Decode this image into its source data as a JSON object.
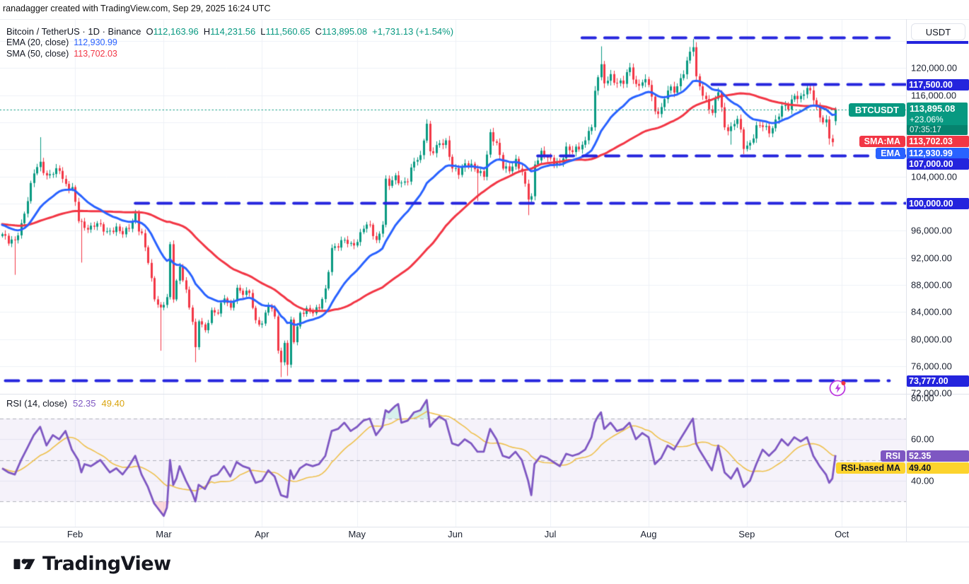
{
  "attribution": "ranadagger created with TradingView.com, Sep 29, 2025 16:24 UTC",
  "legend": {
    "symbol_title": "Bitcoin / TetherUS · 1D · Binance",
    "ohlc": [
      {
        "k": "O",
        "v": "112,163.96"
      },
      {
        "k": "H",
        "v": "114,231.56"
      },
      {
        "k": "L",
        "v": "111,560.65"
      },
      {
        "k": "C",
        "v": "113,895.08"
      }
    ],
    "change": "+1,731.13 (+1.54%)",
    "ema_label": "EMA (20, close)",
    "ema_value": "112,930.99",
    "sma_label": "SMA (50, close)",
    "sma_value": "113,702.03"
  },
  "rsi_legend": {
    "label": "RSI (14, close)",
    "rsi_value": "52.35",
    "ma_value": "49.40"
  },
  "price_scale": {
    "currency_button": "USDT",
    "ticks": [
      {
        "price": 120000,
        "text": "120,000.00"
      },
      {
        "price": 116000,
        "text": "116,000.00"
      },
      {
        "price": 104000,
        "text": "104,000.00"
      },
      {
        "price": 96000,
        "text": "96,000.00"
      },
      {
        "price": 92000,
        "text": "92,000.00"
      },
      {
        "price": 88000,
        "text": "88,000.00"
      },
      {
        "price": 84000,
        "text": "84,000.00"
      },
      {
        "price": 80000,
        "text": "80,000.00"
      },
      {
        "price": 76000,
        "text": "76,000.00"
      },
      {
        "price": 72000,
        "text": "72,000.00"
      }
    ],
    "level_117500": "117,500.00",
    "level_107000": "107,000.00",
    "level_100000": "100,000.00",
    "level_73777": "73,777.00",
    "current": {
      "price": "113,895.08",
      "change_pct": "+23.06%",
      "countdown": "07:35:17"
    },
    "sma_badge_value": "113,702.03",
    "ema_badge_value": "112,930.99"
  },
  "pills": {
    "symbol": "BTCUSDT",
    "sma": "SMA:MA",
    "ema": "EMA",
    "rsi": "RSI",
    "rsi_ma": "RSI-based MA"
  },
  "rsi_scale": {
    "ticks": [
      {
        "v": 80,
        "text": "80.00"
      },
      {
        "v": 60,
        "text": "60.00"
      },
      {
        "v": 40,
        "text": "40.00"
      }
    ],
    "rsi_value": "52.35",
    "ma_value": "49.40"
  },
  "time_axis": {
    "months": [
      {
        "label": "Feb",
        "day": 23
      },
      {
        "label": "Mar",
        "day": 51
      },
      {
        "label": "Apr",
        "day": 82
      },
      {
        "label": "May",
        "day": 112
      },
      {
        "label": "Jun",
        "day": 143
      },
      {
        "label": "Jul",
        "day": 173
      },
      {
        "label": "Aug",
        "day": 204
      },
      {
        "label": "Sep",
        "day": 235
      },
      {
        "label": "Oct",
        "day": 265
      }
    ]
  },
  "footer": {
    "brand": "TradingView"
  },
  "colors": {
    "up": "#089981",
    "down": "#f23645",
    "ema": "#2962ff",
    "sma": "#f23645",
    "level_blue": "#2424dd",
    "rsi": "#7e57c2",
    "rsi_ma": "#eec04d",
    "grid": "#eef1f7",
    "band_fill": "rgba(126,87,194,0.08)",
    "overbought_fill": "rgba(34,171,148,0.18)",
    "oversold_fill": "rgba(247,82,95,0.22)",
    "current_dotted": "#089981",
    "rsi_band_line": "#8a8e99"
  },
  "chart_data": {
    "type": "candlestick+rsi",
    "symbol": "BTCUSDT",
    "exchange": "Binance",
    "timeframe": "1D",
    "start_date": "2025-01-09",
    "end_date": "2025-09-29",
    "price_axis": {
      "min": 71800,
      "max": 127100,
      "grid_step": 4000
    },
    "rsi_axis": {
      "min": 18,
      "max": 81,
      "bands": [
        70,
        50,
        30
      ]
    },
    "ohlc_today": {
      "open": 112163.96,
      "high": 114231.56,
      "low": 111560.65,
      "close": 113895.08,
      "change": 1731.13,
      "change_pct": 1.54
    },
    "ema20_current": 112930.99,
    "sma50_current": 113702.03,
    "rsi_current": 52.35,
    "rsi_ma_current": 49.4,
    "levels": [
      {
        "price": 124400,
        "from_day": 183,
        "to_day": 280,
        "label": ""
      },
      {
        "price": 117500,
        "from_day": 224,
        "to_day": 285,
        "label": "117,500.00"
      },
      {
        "price": 107000,
        "from_day": 169,
        "to_day": 285,
        "label": "107,000.00"
      },
      {
        "price": 100000,
        "from_day": 42,
        "to_day": 285,
        "label": "100,000.00"
      },
      {
        "price": 73777,
        "from_day": 1,
        "to_day": 280,
        "label": "73,777.00"
      }
    ],
    "price_anchors": [
      [
        0,
        95500
      ],
      [
        2,
        94300
      ],
      [
        4,
        94600
      ],
      [
        6,
        96900
      ],
      [
        8,
        100400
      ],
      [
        10,
        104700
      ],
      [
        12,
        106100
      ],
      [
        14,
        103900
      ],
      [
        16,
        104500
      ],
      [
        18,
        105100
      ],
      [
        20,
        102700
      ],
      [
        22,
        102200
      ],
      [
        24,
        97700
      ],
      [
        26,
        96600
      ],
      [
        28,
        96400
      ],
      [
        30,
        97000
      ],
      [
        33,
        95900
      ],
      [
        36,
        96200
      ],
      [
        38,
        95600
      ],
      [
        40,
        96700
      ],
      [
        42,
        98300
      ],
      [
        43,
        96100
      ],
      [
        44,
        95300
      ],
      [
        46,
        91600
      ],
      [
        48,
        86100
      ],
      [
        50,
        84300
      ],
      [
        52,
        86100
      ],
      [
        53,
        93900
      ],
      [
        54,
        86300
      ],
      [
        56,
        90700
      ],
      [
        58,
        86900
      ],
      [
        60,
        82700
      ],
      [
        61,
        78700
      ],
      [
        62,
        83000
      ],
      [
        64,
        81100
      ],
      [
        66,
        84000
      ],
      [
        68,
        84100
      ],
      [
        70,
        86200
      ],
      [
        72,
        84300
      ],
      [
        74,
        87500
      ],
      [
        76,
        86900
      ],
      [
        78,
        86800
      ],
      [
        80,
        82500
      ],
      [
        82,
        82400
      ],
      [
        84,
        85200
      ],
      [
        86,
        83200
      ],
      [
        87,
        78500
      ],
      [
        88,
        76400
      ],
      [
        89,
        79700
      ],
      [
        90,
        76400
      ],
      [
        91,
        82600
      ],
      [
        92,
        79700
      ],
      [
        94,
        83700
      ],
      [
        96,
        84500
      ],
      [
        98,
        84000
      ],
      [
        100,
        84600
      ],
      [
        102,
        87300
      ],
      [
        104,
        93400
      ],
      [
        106,
        93700
      ],
      [
        108,
        94700
      ],
      [
        110,
        94000
      ],
      [
        112,
        94300
      ],
      [
        114,
        96500
      ],
      [
        116,
        96900
      ],
      [
        118,
        94400
      ],
      [
        120,
        96900
      ],
      [
        121,
        103200
      ],
      [
        122,
        102900
      ],
      [
        124,
        104100
      ],
      [
        126,
        102800
      ],
      [
        128,
        103400
      ],
      [
        130,
        106500
      ],
      [
        132,
        106900
      ],
      [
        133,
        109600
      ],
      [
        134,
        111500
      ],
      [
        135,
        107400
      ],
      [
        136,
        107800
      ],
      [
        138,
        109100
      ],
      [
        140,
        108900
      ],
      [
        142,
        105100
      ],
      [
        144,
        104700
      ],
      [
        146,
        105900
      ],
      [
        148,
        105400
      ],
      [
        150,
        104700
      ],
      [
        152,
        104400
      ],
      [
        154,
        110200
      ],
      [
        156,
        108600
      ],
      [
        158,
        105600
      ],
      [
        160,
        105000
      ],
      [
        162,
        106100
      ],
      [
        164,
        104600
      ],
      [
        166,
        101100
      ],
      [
        167,
        100900
      ],
      [
        168,
        105700
      ],
      [
        170,
        107300
      ],
      [
        172,
        107000
      ],
      [
        174,
        106200
      ],
      [
        176,
        105700
      ],
      [
        178,
        108100
      ],
      [
        180,
        108000
      ],
      [
        182,
        108200
      ],
      [
        184,
        108900
      ],
      [
        185,
        111100
      ],
      [
        186,
        111200
      ],
      [
        187,
        116700
      ],
      [
        188,
        119100
      ],
      [
        189,
        120100
      ],
      [
        190,
        117700
      ],
      [
        192,
        118700
      ],
      [
        194,
        117900
      ],
      [
        196,
        118000
      ],
      [
        198,
        119900
      ],
      [
        200,
        117400
      ],
      [
        202,
        118100
      ],
      [
        204,
        117700
      ],
      [
        206,
        113400
      ],
      [
        208,
        114100
      ],
      [
        210,
        116900
      ],
      [
        212,
        116500
      ],
      [
        214,
        118300
      ],
      [
        216,
        121000
      ],
      [
        218,
        123300
      ],
      [
        219,
        118300
      ],
      [
        220,
        117400
      ],
      [
        222,
        115200
      ],
      [
        224,
        113300
      ],
      [
        226,
        116700
      ],
      [
        228,
        111300
      ],
      [
        230,
        111100
      ],
      [
        232,
        112500
      ],
      [
        234,
        108400
      ],
      [
        236,
        108900
      ],
      [
        238,
        111200
      ],
      [
        240,
        111500
      ],
      [
        242,
        110700
      ],
      [
        244,
        112100
      ],
      [
        246,
        114100
      ],
      [
        248,
        114300
      ],
      [
        250,
        116100
      ],
      [
        252,
        115400
      ],
      [
        254,
        117000
      ],
      [
        256,
        115800
      ],
      [
        258,
        112600
      ],
      [
        260,
        111900
      ],
      [
        261,
        109600
      ],
      [
        262,
        109300
      ],
      [
        263,
        113895
      ]
    ],
    "wick_overrides": [
      {
        "d": 4,
        "low": 89500
      },
      {
        "d": 12,
        "high": 109800
      },
      {
        "d": 25,
        "low": 91300
      },
      {
        "d": 50,
        "low": 78300
      },
      {
        "d": 61,
        "low": 76600
      },
      {
        "d": 88,
        "low": 74400
      },
      {
        "d": 90,
        "low": 74600
      },
      {
        "d": 134,
        "high": 112000
      },
      {
        "d": 150,
        "low": 100400
      },
      {
        "d": 166,
        "low": 98300
      },
      {
        "d": 189,
        "high": 123200
      },
      {
        "d": 218,
        "high": 124300
      },
      {
        "d": 230,
        "low": 108700
      },
      {
        "d": 234,
        "low": 107300
      },
      {
        "d": 261,
        "low": 108700
      }
    ],
    "rsi_anchors": [
      [
        0,
        46
      ],
      [
        2,
        44
      ],
      [
        4,
        43
      ],
      [
        6,
        50
      ],
      [
        8,
        56
      ],
      [
        10,
        62
      ],
      [
        12,
        66
      ],
      [
        14,
        57
      ],
      [
        16,
        62
      ],
      [
        18,
        60
      ],
      [
        20,
        64
      ],
      [
        22,
        55
      ],
      [
        24,
        50
      ],
      [
        25,
        44
      ],
      [
        26,
        48
      ],
      [
        28,
        47
      ],
      [
        31,
        50
      ],
      [
        34,
        44
      ],
      [
        36,
        46
      ],
      [
        38,
        43
      ],
      [
        40,
        47
      ],
      [
        42,
        52
      ],
      [
        44,
        43
      ],
      [
        46,
        37
      ],
      [
        48,
        29
      ],
      [
        50,
        25
      ],
      [
        51,
        23
      ],
      [
        52,
        27
      ],
      [
        53,
        50
      ],
      [
        54,
        38
      ],
      [
        55,
        41
      ],
      [
        56,
        47
      ],
      [
        58,
        40
      ],
      [
        60,
        34
      ],
      [
        61,
        30
      ],
      [
        62,
        38
      ],
      [
        64,
        36
      ],
      [
        66,
        42
      ],
      [
        68,
        43
      ],
      [
        70,
        47
      ],
      [
        72,
        42
      ],
      [
        74,
        49
      ],
      [
        76,
        47
      ],
      [
        78,
        46
      ],
      [
        80,
        39
      ],
      [
        82,
        40
      ],
      [
        84,
        45
      ],
      [
        86,
        42
      ],
      [
        88,
        33
      ],
      [
        90,
        32
      ],
      [
        91,
        45
      ],
      [
        92,
        41
      ],
      [
        94,
        46
      ],
      [
        96,
        48
      ],
      [
        98,
        47
      ],
      [
        100,
        48
      ],
      [
        102,
        52
      ],
      [
        104,
        64
      ],
      [
        106,
        65
      ],
      [
        108,
        68
      ],
      [
        110,
        64
      ],
      [
        112,
        66
      ],
      [
        114,
        69
      ],
      [
        116,
        70
      ],
      [
        118,
        62
      ],
      [
        120,
        66
      ],
      [
        121,
        74
      ],
      [
        122,
        73
      ],
      [
        124,
        76
      ],
      [
        125,
        77
      ],
      [
        126,
        68
      ],
      [
        128,
        69
      ],
      [
        130,
        73
      ],
      [
        132,
        74
      ],
      [
        134,
        79
      ],
      [
        135,
        66
      ],
      [
        136,
        68
      ],
      [
        138,
        71
      ],
      [
        140,
        69
      ],
      [
        142,
        58
      ],
      [
        144,
        57
      ],
      [
        146,
        60
      ],
      [
        148,
        58
      ],
      [
        150,
        54
      ],
      [
        152,
        54
      ],
      [
        154,
        65
      ],
      [
        156,
        60
      ],
      [
        158,
        52
      ],
      [
        160,
        51
      ],
      [
        162,
        54
      ],
      [
        164,
        50
      ],
      [
        166,
        40
      ],
      [
        167,
        33
      ],
      [
        168,
        48
      ],
      [
        170,
        52
      ],
      [
        172,
        51
      ],
      [
        174,
        49
      ],
      [
        176,
        47
      ],
      [
        178,
        53
      ],
      [
        180,
        52
      ],
      [
        182,
        53
      ],
      [
        184,
        55
      ],
      [
        186,
        61
      ],
      [
        187,
        68
      ],
      [
        188,
        71
      ],
      [
        189,
        73
      ],
      [
        190,
        65
      ],
      [
        192,
        68
      ],
      [
        194,
        64
      ],
      [
        196,
        65
      ],
      [
        198,
        68
      ],
      [
        200,
        60
      ],
      [
        202,
        63
      ],
      [
        204,
        61
      ],
      [
        206,
        48
      ],
      [
        208,
        51
      ],
      [
        210,
        57
      ],
      [
        212,
        55
      ],
      [
        214,
        60
      ],
      [
        216,
        65
      ],
      [
        218,
        70
      ],
      [
        219,
        58
      ],
      [
        220,
        55
      ],
      [
        222,
        50
      ],
      [
        224,
        45
      ],
      [
        226,
        57
      ],
      [
        228,
        44
      ],
      [
        230,
        41
      ],
      [
        232,
        46
      ],
      [
        234,
        37
      ],
      [
        236,
        40
      ],
      [
        238,
        48
      ],
      [
        240,
        55
      ],
      [
        242,
        52
      ],
      [
        244,
        55
      ],
      [
        246,
        60
      ],
      [
        248,
        57
      ],
      [
        250,
        61
      ],
      [
        252,
        59
      ],
      [
        254,
        61
      ],
      [
        256,
        52
      ],
      [
        258,
        47
      ],
      [
        260,
        43
      ],
      [
        261,
        39
      ],
      [
        262,
        41
      ],
      [
        263,
        52.35
      ]
    ]
  }
}
